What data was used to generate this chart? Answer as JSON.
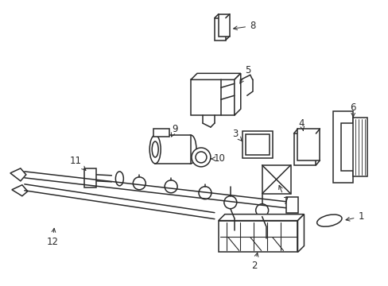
{
  "background_color": "#ffffff",
  "line_color": "#2a2a2a",
  "line_width": 1.1,
  "label_fontsize": 8.5,
  "fig_width": 4.89,
  "fig_height": 3.6
}
